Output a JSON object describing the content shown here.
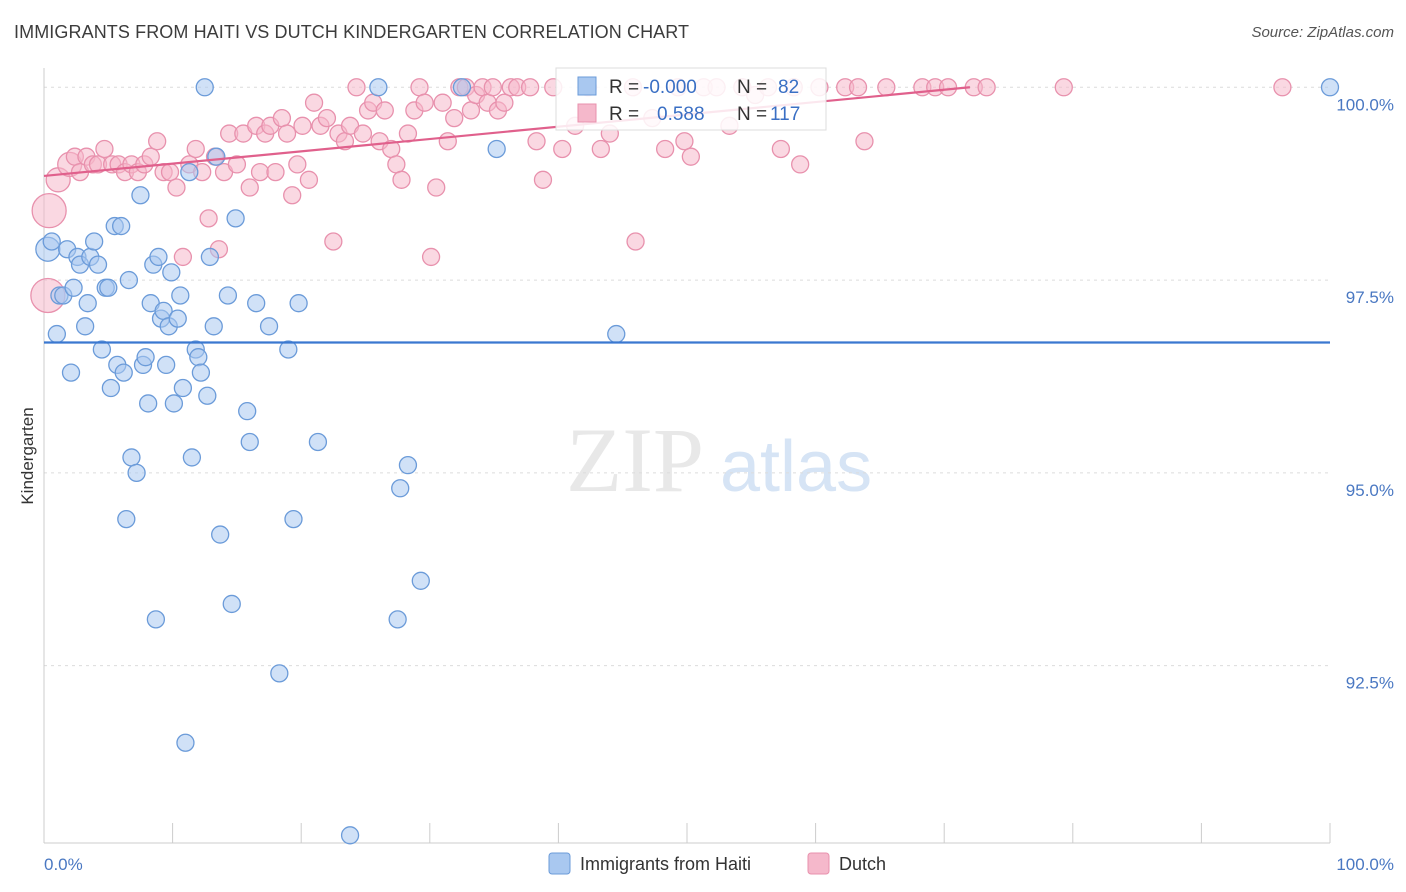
{
  "title": "IMMIGRANTS FROM HAITI VS DUTCH KINDERGARTEN CORRELATION CHART",
  "source": "Source: ZipAtlas.com",
  "watermark": {
    "zip": "ZIP",
    "atlas": "atlas"
  },
  "colors": {
    "blue_fill": "#a9c8f0",
    "blue_stroke": "#6b9bd9",
    "blue_line": "#3a78d0",
    "pink_fill": "#f5b8cb",
    "pink_stroke": "#e891ad",
    "pink_line": "#e0608c",
    "axis_text": "#4a78c2",
    "grid": "#dcdcdc"
  },
  "stats": {
    "r_label": "R =",
    "n_label": "N =",
    "blue": {
      "r": "-0.000",
      "n": "82"
    },
    "pink": {
      "r": "0.588",
      "n": "117"
    }
  },
  "chart_data": {
    "type": "scatter",
    "title": "IMMIGRANTS FROM HAITI VS DUTCH KINDERGARTEN CORRELATION CHART",
    "xlabel": "",
    "ylabel": "Kindergarten",
    "xlim": [
      0,
      100
    ],
    "ylim": [
      90.2,
      100.25
    ],
    "x_tick_labels": [
      "0.0%",
      "100.0%"
    ],
    "y_ticks": [
      92.5,
      95.0,
      97.5,
      100.0
    ],
    "y_tick_labels": [
      "92.5%",
      "95.0%",
      "97.5%",
      "100.0%"
    ],
    "grid": true,
    "legend_position": "bottom-center",
    "series": [
      {
        "name": "Immigrants from Haiti",
        "color": "blue",
        "trend": {
          "x": [
            0,
            100
          ],
          "y": [
            96.69,
            96.69
          ]
        },
        "points": [
          [
            0.3,
            97.9,
            2
          ],
          [
            0.6,
            98.0,
            1
          ],
          [
            1.0,
            96.8,
            1
          ],
          [
            1.2,
            97.3,
            1
          ],
          [
            1.5,
            97.3,
            1
          ],
          [
            1.8,
            97.9,
            1
          ],
          [
            2.1,
            96.3,
            1
          ],
          [
            2.3,
            97.4,
            1
          ],
          [
            2.6,
            97.8,
            1
          ],
          [
            2.8,
            97.7,
            1
          ],
          [
            3.2,
            96.9,
            1
          ],
          [
            3.4,
            97.2,
            1
          ],
          [
            3.6,
            97.8,
            1
          ],
          [
            3.9,
            98.0,
            1
          ],
          [
            4.2,
            97.7,
            1
          ],
          [
            4.5,
            96.6,
            1
          ],
          [
            4.8,
            97.4,
            1
          ],
          [
            5.0,
            97.4,
            1
          ],
          [
            5.5,
            98.2,
            1
          ],
          [
            5.2,
            96.1,
            1
          ],
          [
            5.7,
            96.4,
            1
          ],
          [
            6.0,
            98.2,
            1
          ],
          [
            6.2,
            96.3,
            1
          ],
          [
            6.4,
            94.4,
            1
          ],
          [
            6.6,
            97.5,
            1
          ],
          [
            6.8,
            95.2,
            1
          ],
          [
            7.2,
            95.0,
            1
          ],
          [
            7.5,
            98.6,
            1
          ],
          [
            7.7,
            96.4,
            1
          ],
          [
            7.9,
            96.5,
            1
          ],
          [
            8.1,
            95.9,
            1
          ],
          [
            8.3,
            97.2,
            1
          ],
          [
            8.5,
            97.7,
            1
          ],
          [
            8.7,
            93.1,
            1
          ],
          [
            8.9,
            97.8,
            1
          ],
          [
            9.1,
            97.0,
            1
          ],
          [
            9.3,
            97.1,
            1
          ],
          [
            9.5,
            96.4,
            1
          ],
          [
            9.7,
            96.9,
            1
          ],
          [
            9.9,
            97.6,
            1
          ],
          [
            10.1,
            95.9,
            1
          ],
          [
            10.4,
            97.0,
            1
          ],
          [
            10.6,
            97.3,
            1
          ],
          [
            10.8,
            96.1,
            1
          ],
          [
            11.0,
            91.5,
            1
          ],
          [
            11.3,
            98.9,
            1
          ],
          [
            11.5,
            95.2,
            1
          ],
          [
            11.8,
            96.6,
            1
          ],
          [
            12.0,
            96.5,
            1
          ],
          [
            12.2,
            96.3,
            1
          ],
          [
            12.5,
            100.0,
            1
          ],
          [
            12.7,
            96.0,
            1
          ],
          [
            12.9,
            97.8,
            1
          ],
          [
            13.2,
            96.9,
            1
          ],
          [
            13.4,
            99.1,
            1
          ],
          [
            13.7,
            94.2,
            1
          ],
          [
            14.3,
            97.3,
            1
          ],
          [
            14.6,
            93.3,
            1
          ],
          [
            14.9,
            98.3,
            1
          ],
          [
            15.8,
            95.8,
            1
          ],
          [
            16.0,
            95.4,
            1
          ],
          [
            16.5,
            97.2,
            1
          ],
          [
            17.5,
            96.9,
            1
          ],
          [
            18.3,
            92.4,
            1
          ],
          [
            19.0,
            96.6,
            1
          ],
          [
            19.4,
            94.4,
            1
          ],
          [
            19.8,
            97.2,
            1
          ],
          [
            21.3,
            95.4,
            1
          ],
          [
            23.8,
            90.3,
            1
          ],
          [
            26.0,
            100.0,
            1
          ],
          [
            27.5,
            93.1,
            1
          ],
          [
            27.7,
            94.8,
            1
          ],
          [
            28.3,
            95.1,
            1
          ],
          [
            29.3,
            93.6,
            1
          ],
          [
            32.5,
            100.0,
            1
          ],
          [
            35.2,
            99.2,
            1
          ],
          [
            44.5,
            96.8,
            1
          ],
          [
            100.0,
            100.0,
            1
          ]
        ]
      },
      {
        "name": "Dutch",
        "color": "pink",
        "trend": {
          "x": [
            0,
            72
          ],
          "y": [
            98.85,
            100.0
          ]
        },
        "points": [
          [
            0.3,
            97.3,
            3
          ],
          [
            0.4,
            98.4,
            3
          ],
          [
            1.1,
            98.8,
            2
          ],
          [
            2.0,
            99.0,
            2
          ],
          [
            2.4,
            99.1,
            1
          ],
          [
            2.8,
            98.9,
            1
          ],
          [
            3.3,
            99.1,
            1
          ],
          [
            3.8,
            99.0,
            1
          ],
          [
            4.2,
            99.0,
            1
          ],
          [
            4.7,
            99.2,
            1
          ],
          [
            5.3,
            99.0,
            1
          ],
          [
            5.8,
            99.0,
            1
          ],
          [
            6.3,
            98.9,
            1
          ],
          [
            6.8,
            99.0,
            1
          ],
          [
            7.3,
            98.9,
            1
          ],
          [
            7.8,
            99.0,
            1
          ],
          [
            8.3,
            99.1,
            1
          ],
          [
            8.8,
            99.3,
            1
          ],
          [
            9.3,
            98.9,
            1
          ],
          [
            9.8,
            98.9,
            1
          ],
          [
            10.3,
            98.7,
            1
          ],
          [
            10.8,
            97.8,
            1
          ],
          [
            11.3,
            99.0,
            1
          ],
          [
            11.8,
            99.2,
            1
          ],
          [
            12.3,
            98.9,
            1
          ],
          [
            12.8,
            98.3,
            1
          ],
          [
            13.3,
            99.1,
            1
          ],
          [
            13.6,
            97.9,
            1
          ],
          [
            14.0,
            98.9,
            1
          ],
          [
            14.4,
            99.4,
            1
          ],
          [
            15.0,
            99.0,
            1
          ],
          [
            15.5,
            99.4,
            1
          ],
          [
            16.0,
            98.7,
            1
          ],
          [
            16.5,
            99.5,
            1
          ],
          [
            16.8,
            98.9,
            1
          ],
          [
            17.2,
            99.4,
            1
          ],
          [
            17.6,
            99.5,
            1
          ],
          [
            18.0,
            98.9,
            1
          ],
          [
            18.5,
            99.6,
            1
          ],
          [
            18.9,
            99.4,
            1
          ],
          [
            19.3,
            98.6,
            1
          ],
          [
            19.7,
            99.0,
            1
          ],
          [
            20.1,
            99.5,
            1
          ],
          [
            20.6,
            98.8,
            1
          ],
          [
            21.0,
            99.8,
            1
          ],
          [
            21.5,
            99.5,
            1
          ],
          [
            22.0,
            99.6,
            1
          ],
          [
            22.5,
            98.0,
            1
          ],
          [
            22.9,
            99.4,
            1
          ],
          [
            23.4,
            99.3,
            1
          ],
          [
            23.8,
            99.5,
            1
          ],
          [
            24.3,
            100.0,
            1
          ],
          [
            24.8,
            99.4,
            1
          ],
          [
            25.2,
            99.7,
            1
          ],
          [
            25.6,
            99.8,
            1
          ],
          [
            26.1,
            99.3,
            1
          ],
          [
            26.5,
            99.7,
            1
          ],
          [
            27.0,
            99.2,
            1
          ],
          [
            27.4,
            99.0,
            1
          ],
          [
            27.8,
            98.8,
            1
          ],
          [
            28.3,
            99.4,
            1
          ],
          [
            28.8,
            99.7,
            1
          ],
          [
            29.2,
            100.0,
            1
          ],
          [
            29.6,
            99.8,
            1
          ],
          [
            30.1,
            97.8,
            1
          ],
          [
            30.5,
            98.7,
            1
          ],
          [
            31.0,
            99.8,
            1
          ],
          [
            31.4,
            99.3,
            1
          ],
          [
            31.9,
            99.6,
            1
          ],
          [
            32.3,
            100.0,
            1
          ],
          [
            32.8,
            100.0,
            1
          ],
          [
            33.2,
            99.7,
            1
          ],
          [
            33.6,
            99.9,
            1
          ],
          [
            34.1,
            100.0,
            1
          ],
          [
            34.5,
            99.8,
            1
          ],
          [
            34.9,
            100.0,
            1
          ],
          [
            35.3,
            99.7,
            1
          ],
          [
            35.8,
            99.8,
            1
          ],
          [
            36.3,
            100.0,
            1
          ],
          [
            36.8,
            100.0,
            1
          ],
          [
            37.8,
            100.0,
            1
          ],
          [
            38.3,
            99.3,
            1
          ],
          [
            38.8,
            98.8,
            1
          ],
          [
            39.6,
            100.0,
            1
          ],
          [
            40.3,
            99.2,
            1
          ],
          [
            41.3,
            99.5,
            1
          ],
          [
            42.3,
            100.0,
            1
          ],
          [
            43.3,
            99.2,
            1
          ],
          [
            44.0,
            99.4,
            1
          ],
          [
            45.8,
            100.0,
            1
          ],
          [
            46.0,
            98.0,
            1
          ],
          [
            47.3,
            99.6,
            1
          ],
          [
            48.3,
            99.2,
            1
          ],
          [
            49.3,
            100.0,
            1
          ],
          [
            49.8,
            99.3,
            1
          ],
          [
            50.3,
            99.1,
            1
          ],
          [
            51.3,
            100.0,
            1
          ],
          [
            52.3,
            100.0,
            1
          ],
          [
            53.3,
            99.5,
            1
          ],
          [
            54.3,
            100.0,
            1
          ],
          [
            55.3,
            99.9,
            1
          ],
          [
            56.3,
            100.0,
            1
          ],
          [
            57.3,
            99.2,
            1
          ],
          [
            58.3,
            100.0,
            1
          ],
          [
            58.8,
            99.0,
            1
          ],
          [
            60.3,
            100.0,
            1
          ],
          [
            62.3,
            100.0,
            1
          ],
          [
            63.3,
            100.0,
            1
          ],
          [
            63.8,
            99.3,
            1
          ],
          [
            65.5,
            100.0,
            1
          ],
          [
            68.3,
            100.0,
            1
          ],
          [
            69.3,
            100.0,
            1
          ],
          [
            70.3,
            100.0,
            1
          ],
          [
            72.3,
            100.0,
            1
          ],
          [
            73.3,
            100.0,
            1
          ],
          [
            79.3,
            100.0,
            1
          ],
          [
            96.3,
            100.0,
            1
          ]
        ]
      }
    ]
  }
}
